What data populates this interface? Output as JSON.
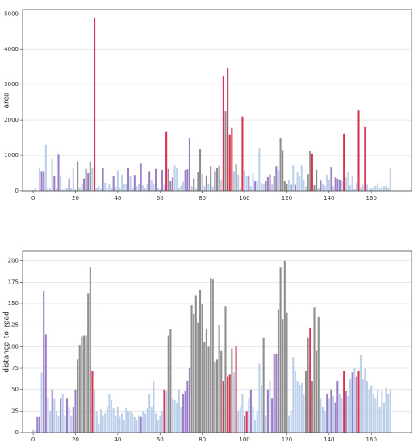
{
  "chart_data": [
    {
      "type": "bar",
      "y_label": "area",
      "x": [
        0,
        1,
        2,
        3,
        4,
        5,
        6,
        7,
        8,
        9,
        10,
        11,
        12,
        13,
        14,
        15,
        16,
        17,
        18,
        19,
        20,
        21,
        22,
        23,
        24,
        25,
        26,
        27,
        28,
        29,
        30,
        31,
        32,
        33,
        34,
        35,
        36,
        37,
        38,
        39,
        40,
        41,
        42,
        43,
        44,
        45,
        46,
        47,
        48,
        49,
        50,
        51,
        52,
        53,
        54,
        55,
        56,
        57,
        58,
        59,
        60,
        61,
        62,
        63,
        64,
        65,
        66,
        67,
        68,
        69,
        70,
        71,
        72,
        73,
        74,
        75,
        76,
        77,
        78,
        79,
        80,
        81,
        82,
        83,
        84,
        85,
        86,
        87,
        88,
        89,
        90,
        91,
        92,
        93,
        94,
        95,
        96,
        97,
        98,
        99,
        100,
        101,
        102,
        103,
        104,
        105,
        106,
        107,
        108,
        109,
        110,
        111,
        112,
        113,
        114,
        115,
        116,
        117,
        118,
        119,
        120,
        121,
        122,
        123,
        124,
        125,
        126,
        127,
        128,
        129,
        130,
        131,
        132,
        133,
        134,
        135,
        136,
        137,
        138,
        139,
        140,
        141,
        142,
        143,
        144,
        145,
        146,
        147,
        148,
        149,
        150,
        151,
        152,
        153,
        154,
        155,
        156,
        157,
        158,
        159,
        160,
        161,
        162,
        163,
        164,
        165,
        166,
        167,
        168,
        169
      ],
      "values": [
        20,
        60,
        10,
        650,
        560,
        560,
        1300,
        80,
        60,
        920,
        420,
        60,
        1040,
        430,
        30,
        50,
        90,
        350,
        80,
        650,
        40,
        830,
        100,
        180,
        350,
        620,
        500,
        820,
        650,
        4900,
        80,
        130,
        50,
        640,
        230,
        90,
        180,
        70,
        410,
        110,
        580,
        90,
        460,
        190,
        210,
        640,
        430,
        90,
        450,
        140,
        200,
        790,
        160,
        70,
        180,
        560,
        300,
        190,
        620,
        90,
        40,
        590,
        170,
        1670,
        620,
        270,
        380,
        720,
        650,
        80,
        140,
        260,
        590,
        610,
        1500,
        130,
        350,
        60,
        540,
        1180,
        480,
        130,
        440,
        180,
        700,
        120,
        560,
        650,
        710,
        330,
        3250,
        2250,
        3480,
        1600,
        1780,
        560,
        760,
        460,
        100,
        2100,
        580,
        430,
        440,
        130,
        500,
        270,
        270,
        1200,
        230,
        190,
        270,
        390,
        470,
        180,
        430,
        700,
        580,
        1500,
        1150,
        270,
        200,
        310,
        170,
        720,
        170,
        530,
        410,
        720,
        300,
        120,
        470,
        1130,
        1050,
        160,
        600,
        90,
        290,
        190,
        140,
        460,
        320,
        680,
        130,
        380,
        350,
        320,
        280,
        1620,
        380,
        550,
        150,
        430,
        50,
        230,
        2270,
        100,
        170,
        1800,
        170,
        40,
        70,
        100,
        140,
        220,
        60,
        100,
        130,
        140,
        80,
        630
      ],
      "colors": [
        "#bccfea",
        "#bccfea",
        "#bccfea",
        "#bccfea",
        "#9c7ec6",
        "#9c7ec6",
        "#bccfea",
        "#bccfea",
        "#bccfea",
        "#bccfea",
        "#9c7ec6",
        "#bccfea",
        "#9c7ec6",
        "#bccfea",
        "#bccfea",
        "#bccfea",
        "#bccfea",
        "#9c7ec6",
        "#bccfea",
        "#bccfea",
        "#bccfea",
        "#8e8e8e",
        "#bccfea",
        "#bccfea",
        "#9c7ec6",
        "#8e8e8e",
        "#9c7ec6",
        "#8e8e8e",
        "#bccfea",
        "#d9334f",
        "#bccfea",
        "#bccfea",
        "#bccfea",
        "#9c7ec6",
        "#bccfea",
        "#bccfea",
        "#bccfea",
        "#bccfea",
        "#9c7ec6",
        "#bccfea",
        "#bccfea",
        "#bccfea",
        "#bccfea",
        "#bccfea",
        "#bccfea",
        "#9c7ec6",
        "#bccfea",
        "#bccfea",
        "#9c7ec6",
        "#bccfea",
        "#bccfea",
        "#9c7ec6",
        "#bccfea",
        "#bccfea",
        "#bccfea",
        "#9c7ec6",
        "#bccfea",
        "#bccfea",
        "#9c7ec6",
        "#bccfea",
        "#bccfea",
        "#9c7ec6",
        "#bccfea",
        "#d9334f",
        "#9c7ec6",
        "#8e8e8e",
        "#9c7ec6",
        "#bccfea",
        "#bccfea",
        "#bccfea",
        "#bccfea",
        "#bccfea",
        "#9c7ec6",
        "#9c7ec6",
        "#9c7ec6",
        "#bccfea",
        "#8e8e8e",
        "#bccfea",
        "#8e8e8e",
        "#8e8e8e",
        "#bccfea",
        "#bccfea",
        "#8e8e8e",
        "#bccfea",
        "#8e8e8e",
        "#bccfea",
        "#9c7ec6",
        "#8e8e8e",
        "#8e8e8e",
        "#bccfea",
        "#d9334f",
        "#8e8e8e",
        "#d9334f",
        "#d9334f",
        "#d9334f",
        "#bccfea",
        "#8e8e8e",
        "#bccfea",
        "#bccfea",
        "#d9334f",
        "#bccfea",
        "#bccfea",
        "#9c7ec6",
        "#bccfea",
        "#bccfea",
        "#9c7ec6",
        "#bccfea",
        "#bccfea",
        "#bccfea",
        "#bccfea",
        "#8e8e8e",
        "#9c7ec6",
        "#9c7ec6",
        "#bccfea",
        "#8e8e8e",
        "#9c7ec6",
        "#bccfea",
        "#8e8e8e",
        "#8e8e8e",
        "#8e8e8e",
        "#8e8e8e",
        "#bccfea",
        "#8e8e8e",
        "#bccfea",
        "#9c7ec6",
        "#bccfea",
        "#bccfea",
        "#bccfea",
        "#bccfea",
        "#bccfea",
        "#8e8e8e",
        "#8e8e8e",
        "#d9334f",
        "#8e8e8e",
        "#8e8e8e",
        "#bccfea",
        "#9c7ec6",
        "#bccfea",
        "#bccfea",
        "#bccfea",
        "#bccfea",
        "#9c7ec6",
        "#bccfea",
        "#9c7ec6",
        "#9c7ec6",
        "#9c7ec6",
        "#bccfea",
        "#d9334f",
        "#bccfea",
        "#bccfea",
        "#bccfea",
        "#bccfea",
        "#bccfea",
        "#bccfea",
        "#d9334f",
        "#bccfea",
        "#bccfea",
        "#d9334f",
        "#bccfea",
        "#bccfea",
        "#bccfea",
        "#bccfea",
        "#bccfea",
        "#bccfea",
        "#bccfea",
        "#bccfea",
        "#bccfea",
        "#bccfea",
        "#bccfea",
        "#bccfea"
      ],
      "xlim": [
        -5,
        179
      ],
      "xticks": [
        0,
        20,
        40,
        60,
        80,
        100,
        120,
        140,
        160
      ],
      "ylim": [
        0,
        5120
      ],
      "yticks": [
        0,
        1000,
        2000,
        3000,
        4000,
        5000
      ],
      "grid": true
    },
    {
      "type": "bar",
      "y_label": "distance_to_road",
      "x": [
        0,
        1,
        2,
        3,
        4,
        5,
        6,
        7,
        8,
        9,
        10,
        11,
        12,
        13,
        14,
        15,
        16,
        17,
        18,
        19,
        20,
        21,
        22,
        23,
        24,
        25,
        26,
        27,
        28,
        29,
        30,
        31,
        32,
        33,
        34,
        35,
        36,
        37,
        38,
        39,
        40,
        41,
        42,
        43,
        44,
        45,
        46,
        47,
        48,
        49,
        50,
        51,
        52,
        53,
        54,
        55,
        56,
        57,
        58,
        59,
        60,
        61,
        62,
        63,
        64,
        65,
        66,
        67,
        68,
        69,
        70,
        71,
        72,
        73,
        74,
        75,
        76,
        77,
        78,
        79,
        80,
        81,
        82,
        83,
        84,
        85,
        86,
        87,
        88,
        89,
        90,
        91,
        92,
        93,
        94,
        95,
        96,
        97,
        98,
        99,
        100,
        101,
        102,
        103,
        104,
        105,
        106,
        107,
        108,
        109,
        110,
        111,
        112,
        113,
        114,
        115,
        116,
        117,
        118,
        119,
        120,
        121,
        122,
        123,
        124,
        125,
        126,
        127,
        128,
        129,
        130,
        131,
        132,
        133,
        134,
        135,
        136,
        137,
        138,
        139,
        140,
        141,
        142,
        143,
        144,
        145,
        146,
        147,
        148,
        149,
        150,
        151,
        152,
        153,
        154,
        155,
        156,
        157,
        158,
        159,
        160,
        161,
        162,
        163,
        164,
        165,
        166,
        167,
        168,
        169
      ],
      "values": [
        3,
        2,
        18,
        18,
        70,
        165,
        114,
        40,
        25,
        50,
        40,
        25,
        20,
        40,
        45,
        20,
        40,
        30,
        20,
        30,
        50,
        85,
        102,
        112,
        113,
        113,
        162,
        192,
        72,
        50,
        25,
        10,
        27,
        20,
        22,
        30,
        45,
        38,
        28,
        20,
        30,
        18,
        22,
        15,
        28,
        25,
        25,
        22,
        18,
        15,
        20,
        18,
        25,
        22,
        28,
        45,
        30,
        60,
        22,
        15,
        20,
        25,
        50,
        48,
        113,
        120,
        40,
        38,
        35,
        50,
        30,
        45,
        48,
        60,
        75,
        148,
        138,
        160,
        128,
        166,
        150,
        105,
        120,
        100,
        180,
        178,
        82,
        85,
        125,
        95,
        60,
        147,
        65,
        68,
        98,
        70,
        100,
        25,
        30,
        45,
        20,
        25,
        40,
        50,
        30,
        15,
        25,
        80,
        55,
        110,
        20,
        50,
        60,
        40,
        92,
        92,
        143,
        192,
        132,
        200,
        140,
        20,
        25,
        88,
        72,
        60,
        55,
        58,
        45,
        72,
        110,
        122,
        60,
        146,
        95,
        135,
        40,
        30,
        25,
        45,
        40,
        50,
        42,
        35,
        60,
        45,
        40,
        72,
        48,
        42,
        62,
        70,
        75,
        65,
        72,
        90,
        62,
        75,
        60,
        50,
        55,
        45,
        40,
        50,
        30,
        48,
        35,
        52,
        45,
        50
      ],
      "colors": [
        "#bccfea",
        "#bccfea",
        "#9c7ec6",
        "#9c7ec6",
        "#bccfea",
        "#9c7ec6",
        "#9c7ec6",
        "#bccfea",
        "#bccfea",
        "#9c7ec6",
        "#bccfea",
        "#bccfea",
        "#bccfea",
        "#9c7ec6",
        "#bccfea",
        "#bccfea",
        "#9c7ec6",
        "#bccfea",
        "#bccfea",
        "#9c7ec6",
        "#9c7ec6",
        "#8e8e8e",
        "#8e8e8e",
        "#8e8e8e",
        "#8e8e8e",
        "#8e8e8e",
        "#8e8e8e",
        "#8e8e8e",
        "#d9334f",
        "#bccfea",
        "#bccfea",
        "#bccfea",
        "#bccfea",
        "#bccfea",
        "#bccfea",
        "#bccfea",
        "#bccfea",
        "#bccfea",
        "#bccfea",
        "#bccfea",
        "#bccfea",
        "#bccfea",
        "#bccfea",
        "#bccfea",
        "#bccfea",
        "#bccfea",
        "#bccfea",
        "#bccfea",
        "#bccfea",
        "#bccfea",
        "#bccfea",
        "#9c7ec6",
        "#bccfea",
        "#bccfea",
        "#bccfea",
        "#bccfea",
        "#bccfea",
        "#bccfea",
        "#bccfea",
        "#bccfea",
        "#bccfea",
        "#bccfea",
        "#d9334f",
        "#bccfea",
        "#8e8e8e",
        "#8e8e8e",
        "#bccfea",
        "#bccfea",
        "#bccfea",
        "#bccfea",
        "#bccfea",
        "#9c7ec6",
        "#9c7ec6",
        "#9c7ec6",
        "#9c7ec6",
        "#8e8e8e",
        "#8e8e8e",
        "#8e8e8e",
        "#8e8e8e",
        "#8e8e8e",
        "#8e8e8e",
        "#8e8e8e",
        "#8e8e8e",
        "#8e8e8e",
        "#8e8e8e",
        "#8e8e8e",
        "#8e8e8e",
        "#8e8e8e",
        "#8e8e8e",
        "#8e8e8e",
        "#d9334f",
        "#8e8e8e",
        "#d9334f",
        "#d9334f",
        "#8e8e8e",
        "#bccfea",
        "#d9334f",
        "#bccfea",
        "#bccfea",
        "#bccfea",
        "#9c7ec6",
        "#d9334f",
        "#bccfea",
        "#9c7ec6",
        "#bccfea",
        "#bccfea",
        "#bccfea",
        "#bccfea",
        "#bccfea",
        "#8e8e8e",
        "#bccfea",
        "#9c7ec6",
        "#bccfea",
        "#9c7ec6",
        "#9c7ec6",
        "#9c7ec6",
        "#8e8e8e",
        "#8e8e8e",
        "#8e8e8e",
        "#8e8e8e",
        "#8e8e8e",
        "#bccfea",
        "#bccfea",
        "#bccfea",
        "#bccfea",
        "#bccfea",
        "#bccfea",
        "#bccfea",
        "#bccfea",
        "#8e8e8e",
        "#8e8e8e",
        "#d9334f",
        "#8e8e8e",
        "#8e8e8e",
        "#8e8e8e",
        "#8e8e8e",
        "#bccfea",
        "#bccfea",
        "#bccfea",
        "#9c7ec6",
        "#bccfea",
        "#9c7ec6",
        "#bccfea",
        "#9c7ec6",
        "#9c7ec6",
        "#bccfea",
        "#bccfea",
        "#d9334f",
        "#9c7ec6",
        "#bccfea",
        "#bccfea",
        "#9c7ec6",
        "#bccfea",
        "#9c7ec6",
        "#d9334f",
        "#bccfea",
        "#bccfea",
        "#bccfea",
        "#bccfea",
        "#bccfea",
        "#bccfea",
        "#bccfea",
        "#bccfea",
        "#bccfea",
        "#bccfea",
        "#bccfea",
        "#bccfea",
        "#bccfea",
        "#bccfea",
        "#bccfea",
        "#bccfea",
        "#bccfea"
      ],
      "xlim": [
        -5,
        179
      ],
      "xticks": [
        0,
        20,
        40,
        60,
        80,
        100,
        120,
        140,
        160
      ],
      "ylim": [
        0,
        211
      ],
      "yticks": [
        0,
        25,
        50,
        75,
        100,
        125,
        150,
        175,
        200
      ],
      "grid": true
    }
  ]
}
